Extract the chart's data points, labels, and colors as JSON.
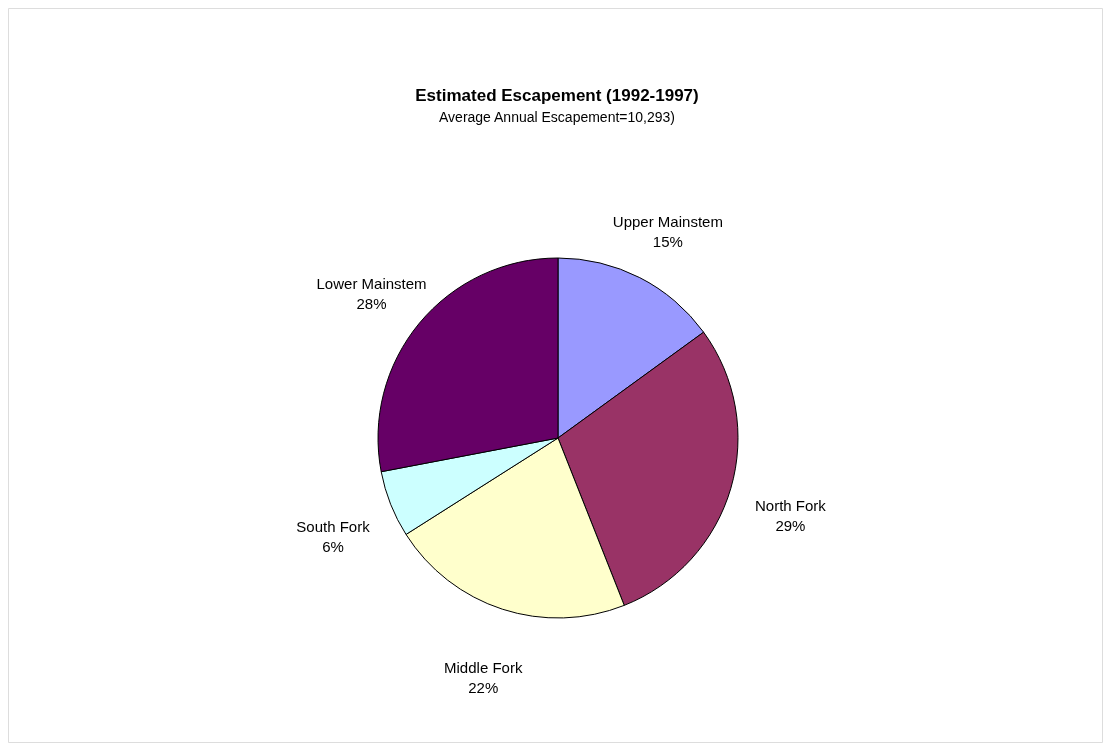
{
  "chart_data": {
    "type": "pie",
    "title": "Estimated Escapement (1992-1997)",
    "subtitle": "Average Annual Escapement=10,293)",
    "categories": [
      "Upper Mainstem",
      "North Fork",
      "Middle Fork",
      "South Fork",
      "Lower Mainstem"
    ],
    "values": [
      15,
      29,
      22,
      6,
      28
    ],
    "value_labels": [
      "15%",
      "29%",
      "22%",
      "6%",
      "28%"
    ],
    "colors": [
      "#9999ff",
      "#993366",
      "#ffffcc",
      "#ccffff",
      "#660066"
    ],
    "legend": false
  }
}
